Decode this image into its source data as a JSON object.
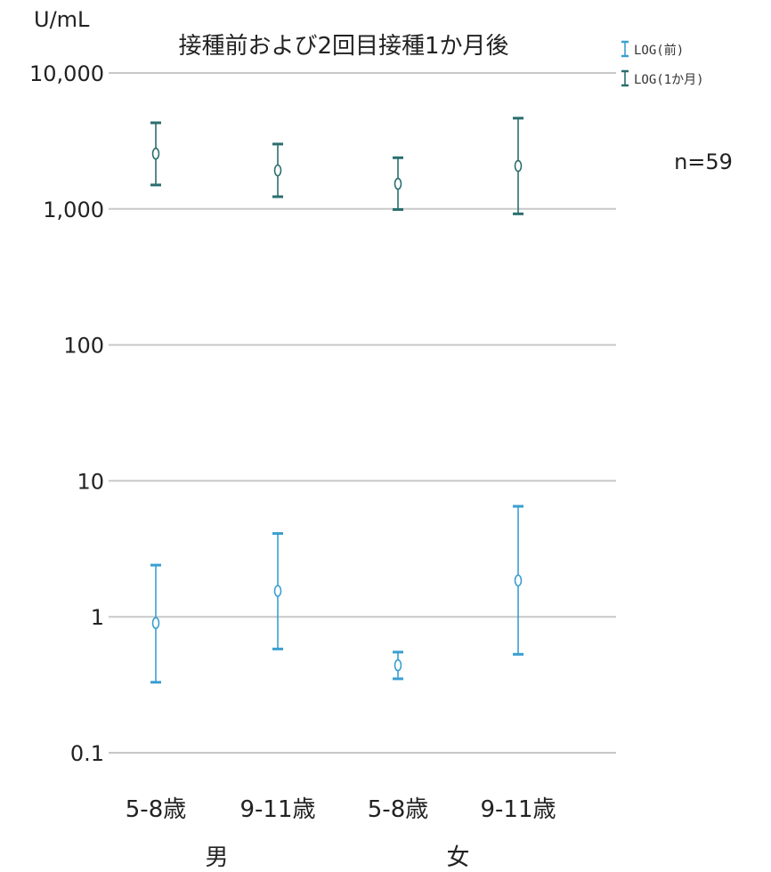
{
  "chart_data": {
    "type": "errorbar",
    "title": "接種前および2回目接種1か月後",
    "unit_label": "U/mL",
    "n_label": "n=59",
    "y_scale": "log",
    "ylim": [
      0.1,
      10000
    ],
    "y_ticks": [
      {
        "value": 0.1,
        "label": "0.1"
      },
      {
        "value": 1,
        "label": "1"
      },
      {
        "value": 10,
        "label": "10"
      },
      {
        "value": 100,
        "label": "100"
      },
      {
        "value": 1000,
        "label": "1,000"
      },
      {
        "value": 10000,
        "label": "10,000"
      }
    ],
    "grid": true,
    "legend_position": "top-right",
    "categories": [
      "5-8歳",
      "9-11歳",
      "5-8歳",
      "9-11歳"
    ],
    "groups": [
      {
        "label": "男",
        "categories": [
          0,
          1
        ]
      },
      {
        "label": "女",
        "categories": [
          2,
          3
        ]
      }
    ],
    "series": [
      {
        "name": "LOG(前)",
        "color": "#3a9fd0",
        "points": [
          {
            "mean": 0.9,
            "low": 0.33,
            "high": 2.4
          },
          {
            "mean": 1.55,
            "low": 0.58,
            "high": 4.1
          },
          {
            "mean": 0.44,
            "low": 0.35,
            "high": 0.55
          },
          {
            "mean": 1.85,
            "low": 0.53,
            "high": 6.5
          }
        ]
      },
      {
        "name": "LOG(1か月)",
        "color": "#2b6e6e",
        "points": [
          {
            "mean": 2550,
            "low": 1500,
            "high": 4300
          },
          {
            "mean": 1920,
            "low": 1230,
            "high": 3000
          },
          {
            "mean": 1530,
            "low": 990,
            "high": 2380
          },
          {
            "mean": 2070,
            "low": 920,
            "high": 4650
          }
        ]
      }
    ]
  }
}
